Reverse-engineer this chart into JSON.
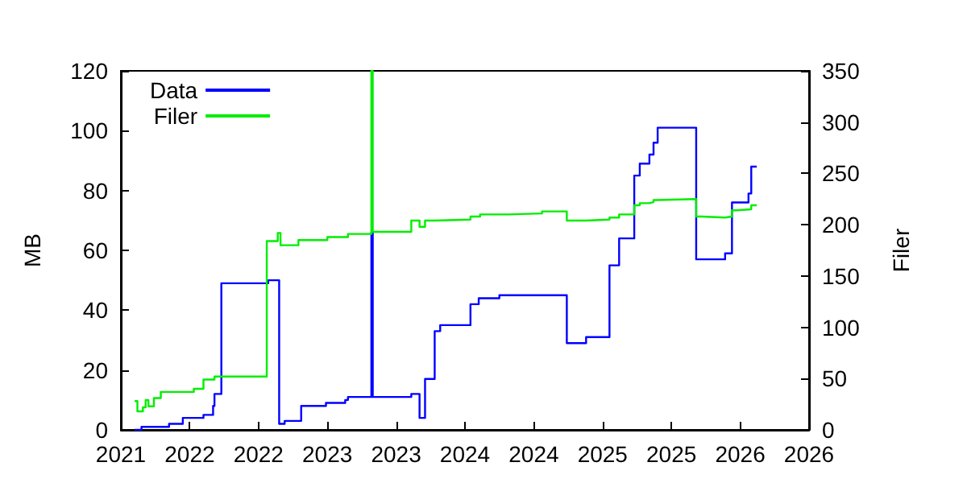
{
  "chart_data": {
    "type": "step",
    "ylabel": "MB",
    "y2label": "Filer",
    "xlim": [
      2021.25,
      2026.25
    ],
    "xticks": [
      {
        "value": 2021.25,
        "label": "2021"
      },
      {
        "value": 2021.75,
        "label": "2022"
      },
      {
        "value": 2022.25,
        "label": "2022"
      },
      {
        "value": 2022.75,
        "label": "2023"
      },
      {
        "value": 2023.25,
        "label": "2023"
      },
      {
        "value": 2023.75,
        "label": "2024"
      },
      {
        "value": 2024.25,
        "label": "2024"
      },
      {
        "value": 2024.75,
        "label": "2025"
      },
      {
        "value": 2025.25,
        "label": "2025"
      },
      {
        "value": 2025.75,
        "label": "2026"
      },
      {
        "value": 2026.25,
        "label": "2026"
      }
    ],
    "ylim": [
      0,
      120
    ],
    "yticks": [
      0,
      20,
      40,
      60,
      80,
      100,
      120
    ],
    "y2lim": [
      0,
      350
    ],
    "y2ticks": [
      0,
      50,
      100,
      150,
      200,
      250,
      300,
      350
    ],
    "legend": "top left",
    "grid": false,
    "series": [
      {
        "name": "Data",
        "color": "#0000ff",
        "x": [
          2021.35,
          2021.4,
          2021.6,
          2021.7,
          2021.85,
          2021.92,
          2021.93,
          2021.98,
          2022.32,
          2022.4,
          2022.44,
          2022.56,
          2022.74,
          2022.88,
          2022.9,
          2023.07,
          2023.08,
          2023.36,
          2023.42,
          2023.46,
          2023.53,
          2023.57,
          2023.79,
          2023.85,
          2024.0,
          2024.49,
          2024.63,
          2024.8,
          2024.87,
          2024.98,
          2025.02,
          2025.09,
          2025.12,
          2025.15,
          2025.43,
          2025.64,
          2025.69,
          2025.81,
          2025.83,
          2025.87
        ],
        "values": [
          0,
          1,
          2,
          4,
          5,
          8,
          12,
          49,
          50,
          2,
          3,
          8,
          9,
          10,
          11,
          66,
          11,
          12,
          4,
          17,
          33,
          35,
          42,
          44,
          45,
          29,
          31,
          55,
          64,
          85,
          89,
          92,
          96,
          101,
          57,
          59,
          76,
          79,
          88,
          88
        ]
      },
      {
        "name": "Filer",
        "color": "#00ee00",
        "axis": "y2",
        "x": [
          2021.35,
          2021.37,
          2021.41,
          2021.43,
          2021.45,
          2021.49,
          2021.54,
          2021.78,
          2021.85,
          2021.93,
          2022.31,
          2022.39,
          2022.41,
          2022.54,
          2022.75,
          2022.9,
          2023.07,
          2023.08,
          2023.36,
          2023.42,
          2023.46,
          2023.53,
          2023.79,
          2023.86,
          2024.07,
          2024.31,
          2024.49,
          2024.63,
          2024.8,
          2024.87,
          2024.98,
          2025.02,
          2025.09,
          2025.12,
          2025.15,
          2025.43,
          2025.47,
          2025.64,
          2025.69,
          2025.72,
          2025.83,
          2025.87
        ],
        "values": [
          28,
          18,
          22,
          29,
          23,
          31,
          37,
          40,
          49,
          52,
          184,
          192,
          180,
          185,
          188,
          191,
          350,
          193,
          204,
          198,
          204,
          205,
          208,
          210,
          211,
          213,
          204,
          205,
          207,
          210,
          219,
          221,
          222,
          224,
          225,
          208,
          207,
          208,
          214,
          215,
          219,
          219
        ]
      }
    ]
  }
}
